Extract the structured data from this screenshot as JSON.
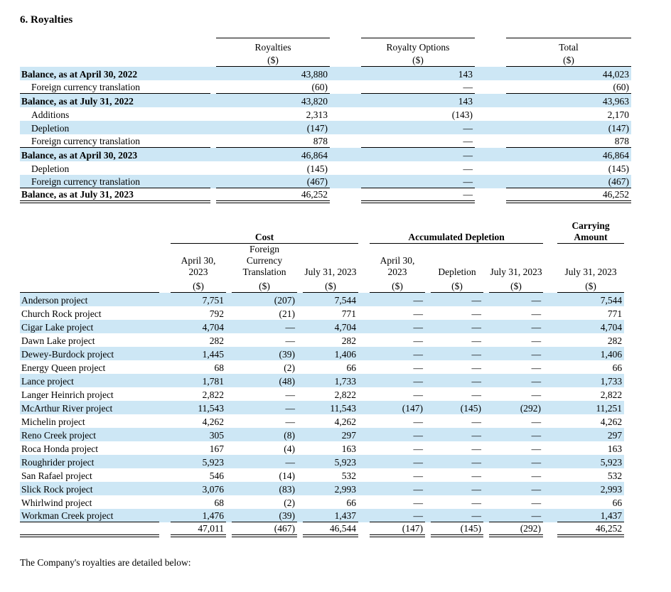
{
  "theme": {
    "highlight_color": "#cde7f5",
    "text_color": "#000000"
  },
  "page": {
    "title": "6. Royalties",
    "footer_text": "The Company's royalties are detailed below:"
  },
  "rollforward": {
    "groups": [
      {
        "label": "Royalties",
        "unit": "($)"
      },
      {
        "label": "Royalty Options",
        "unit": "($)"
      },
      {
        "label": "Total",
        "unit": "($)"
      }
    ],
    "rows": [
      {
        "label": "Balance, as at April 30, 2022",
        "values": [
          "43,880",
          "143",
          "44,023"
        ],
        "bold": true,
        "highlight": true
      },
      {
        "label": "Foreign currency translation",
        "values": [
          "(60)",
          "—",
          "(60)"
        ],
        "indent": true,
        "rule": "single"
      },
      {
        "label": "Balance, as at July 31, 2022",
        "values": [
          "43,820",
          "143",
          "43,963"
        ],
        "bold": true,
        "highlight": true
      },
      {
        "label": "Additions",
        "values": [
          "2,313",
          "(143)",
          "2,170"
        ],
        "indent": true
      },
      {
        "label": "Depletion",
        "values": [
          "(147)",
          "—",
          "(147)"
        ],
        "indent": true,
        "highlight": true
      },
      {
        "label": "Foreign currency translation",
        "values": [
          "878",
          "—",
          "878"
        ],
        "indent": true,
        "rule": "single"
      },
      {
        "label": "Balance, as at April 30, 2023",
        "values": [
          "46,864",
          "—",
          "46,864"
        ],
        "bold": true,
        "highlight": true
      },
      {
        "label": "Depletion",
        "values": [
          "(145)",
          "—",
          "(145)"
        ],
        "indent": true
      },
      {
        "label": "Foreign currency translation",
        "values": [
          "(467)",
          "—",
          "(467)"
        ],
        "indent": true,
        "highlight": true,
        "rule": "single"
      },
      {
        "label": "Balance, as at July 31, 2023",
        "values": [
          "46,252",
          "—",
          "46,252"
        ],
        "bold": true,
        "rule": "double"
      }
    ]
  },
  "projects": {
    "group_headers": {
      "cost": "Cost",
      "accumulated_depletion": "Accumulated Depletion",
      "carrying": "Carrying Amount"
    },
    "column_headers": [
      "April 30, 2023",
      "Foreign Currency Translation",
      "July 31, 2023",
      "April 30, 2023",
      "Depletion",
      "July 31, 2023",
      "July 31, 2023"
    ],
    "unit": "($)",
    "rows": [
      {
        "label": "Anderson project",
        "values": [
          "7,751",
          "(207)",
          "7,544",
          "—",
          "—",
          "—",
          "7,544"
        ],
        "highlight": true
      },
      {
        "label": "Church Rock project",
        "values": [
          "792",
          "(21)",
          "771",
          "—",
          "—",
          "—",
          "771"
        ]
      },
      {
        "label": "Cigar Lake project",
        "values": [
          "4,704",
          "—",
          "4,704",
          "—",
          "—",
          "—",
          "4,704"
        ],
        "highlight": true
      },
      {
        "label": "Dawn Lake project",
        "values": [
          "282",
          "—",
          "282",
          "—",
          "—",
          "—",
          "282"
        ]
      },
      {
        "label": "Dewey-Burdock project",
        "values": [
          "1,445",
          "(39)",
          "1,406",
          "—",
          "—",
          "—",
          "1,406"
        ],
        "highlight": true
      },
      {
        "label": "Energy Queen project",
        "values": [
          "68",
          "(2)",
          "66",
          "—",
          "—",
          "—",
          "66"
        ]
      },
      {
        "label": "Lance project",
        "values": [
          "1,781",
          "(48)",
          "1,733",
          "—",
          "—",
          "—",
          "1,733"
        ],
        "highlight": true
      },
      {
        "label": "Langer Heinrich project",
        "values": [
          "2,822",
          "—",
          "2,822",
          "—",
          "—",
          "—",
          "2,822"
        ]
      },
      {
        "label": "McArthur River project",
        "values": [
          "11,543",
          "—",
          "11,543",
          "(147)",
          "(145)",
          "(292)",
          "11,251"
        ],
        "highlight": true
      },
      {
        "label": "Michelin project",
        "values": [
          "4,262",
          "—",
          "4,262",
          "—",
          "—",
          "—",
          "4,262"
        ]
      },
      {
        "label": "Reno Creek project",
        "values": [
          "305",
          "(8)",
          "297",
          "—",
          "—",
          "—",
          "297"
        ],
        "highlight": true
      },
      {
        "label": "Roca Honda project",
        "values": [
          "167",
          "(4)",
          "163",
          "—",
          "—",
          "—",
          "163"
        ]
      },
      {
        "label": "Roughrider project",
        "values": [
          "5,923",
          "—",
          "5,923",
          "—",
          "—",
          "—",
          "5,923"
        ],
        "highlight": true
      },
      {
        "label": "San Rafael project",
        "values": [
          "546",
          "(14)",
          "532",
          "—",
          "—",
          "—",
          "532"
        ]
      },
      {
        "label": "Slick Rock project",
        "values": [
          "3,076",
          "(83)",
          "2,993",
          "—",
          "—",
          "—",
          "2,993"
        ],
        "highlight": true
      },
      {
        "label": "Whirlwind project",
        "values": [
          "68",
          "(2)",
          "66",
          "—",
          "—",
          "—",
          "66"
        ]
      },
      {
        "label": "Workman Creek project",
        "values": [
          "1,476",
          "(39)",
          "1,437",
          "—",
          "—",
          "—",
          "1,437"
        ],
        "highlight": true,
        "rule": "single"
      },
      {
        "label": "",
        "values": [
          "47,011",
          "(467)",
          "46,544",
          "(147)",
          "(145)",
          "(292)",
          "46,252"
        ],
        "rule": "double",
        "is_total": true
      }
    ]
  }
}
